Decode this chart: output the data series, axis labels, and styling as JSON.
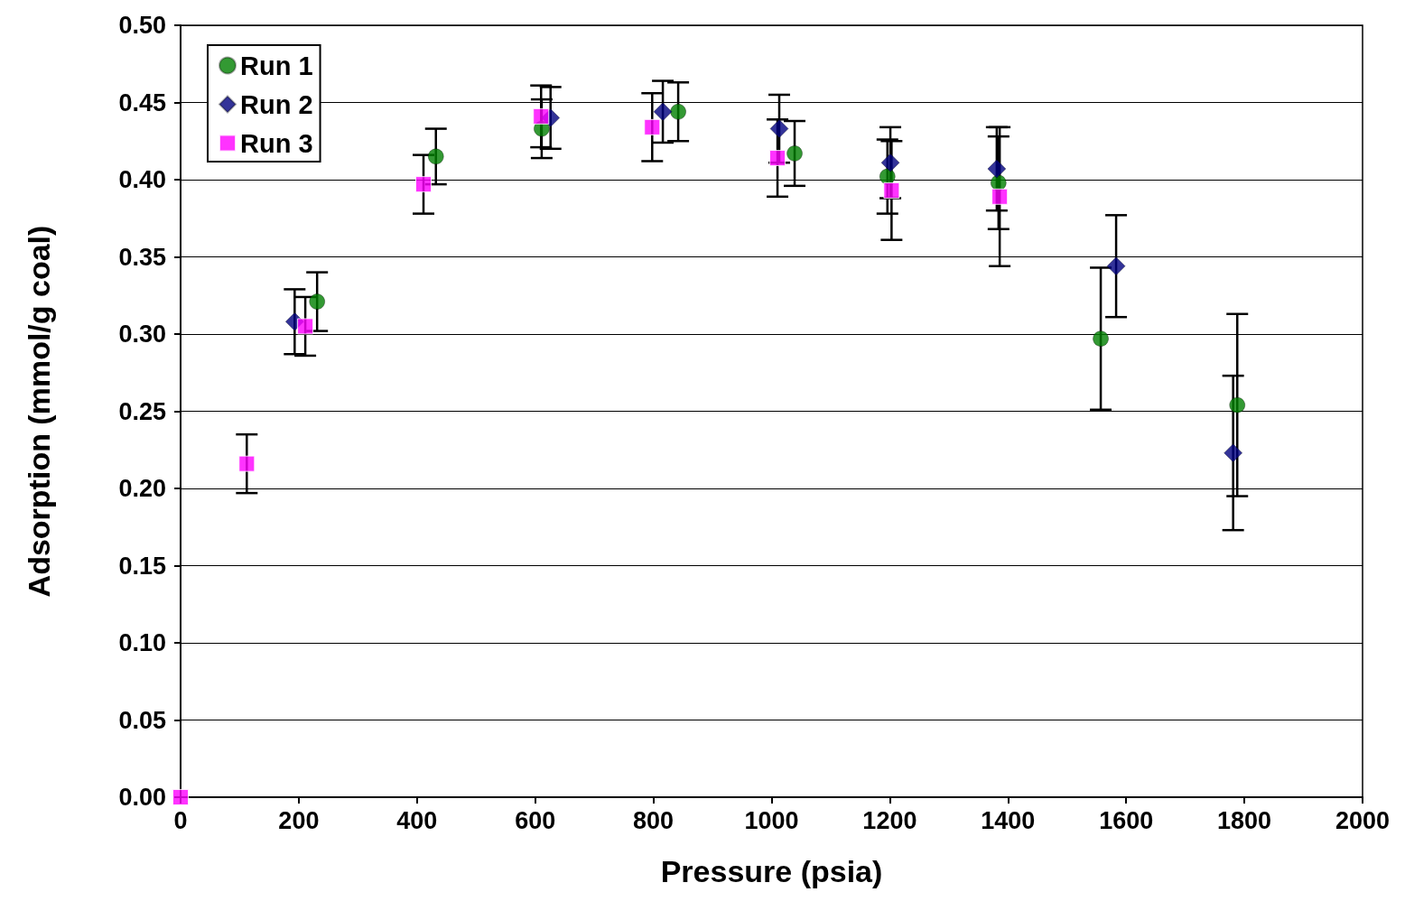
{
  "chart_data": {
    "type": "scatter",
    "xlabel": "Pressure (psia)",
    "ylabel": "Adsorption (mmol/g coal)",
    "xlim": [
      0,
      2000
    ],
    "xticks": [
      0,
      200,
      400,
      600,
      800,
      1000,
      1200,
      1400,
      1600,
      1800,
      2000
    ],
    "ylim": [
      0,
      0.5
    ],
    "yticks": [
      {
        "value": 0,
        "label": "0.00"
      },
      {
        "value": 0.05,
        "label": "0.05"
      },
      {
        "value": 0.1,
        "label": "0.10"
      },
      {
        "value": 0.15,
        "label": "0.15"
      },
      {
        "value": 0.2,
        "label": "0.20"
      },
      {
        "value": 0.25,
        "label": "0.25"
      },
      {
        "value": 0.3,
        "label": "0.30"
      },
      {
        "value": 0.35,
        "label": "0.35"
      },
      {
        "value": 0.4,
        "label": "0.40"
      },
      {
        "value": 0.45,
        "label": "0.45"
      },
      {
        "value": 0.5,
        "label": "0.50"
      }
    ],
    "grid": "y",
    "legend": "top left",
    "series": [
      {
        "name": "Run 1",
        "color": "#008000",
        "marker": "circle",
        "x": [
          231,
          432,
          611,
          842,
          1039,
          1196,
          1384,
          1557,
          1788
        ],
        "values": [
          0.321,
          0.415,
          0.433,
          0.444,
          0.417,
          0.402,
          0.398,
          0.297,
          0.254
        ],
        "errors": [
          0.019,
          0.018,
          0.019,
          0.019,
          0.021,
          0.024,
          0.03,
          0.046,
          0.059
        ]
      },
      {
        "name": "Run 2",
        "color": "#000080",
        "marker": "diamond",
        "x": [
          193,
          626,
          816,
          1013,
          1201,
          1381,
          1583,
          1781
        ],
        "values": [
          0.308,
          0.44,
          0.444,
          0.433,
          0.411,
          0.407,
          0.344,
          0.223
        ],
        "errors": [
          0.021,
          0.02,
          0.02,
          0.022,
          0.023,
          0.027,
          0.033,
          0.05
        ]
      },
      {
        "name": "Run 3",
        "color": "#ff00ff",
        "marker": "square",
        "x": [
          0,
          112,
          211,
          411,
          610,
          798,
          1010,
          1203,
          1386
        ],
        "values": [
          0,
          0.216,
          0.305,
          0.397,
          0.441,
          0.434,
          0.414,
          0.393,
          0.389
        ],
        "errors": [
          null,
          0.019,
          0.019,
          0.019,
          0.02,
          0.022,
          0.025,
          0.032,
          0.045
        ]
      }
    ]
  }
}
